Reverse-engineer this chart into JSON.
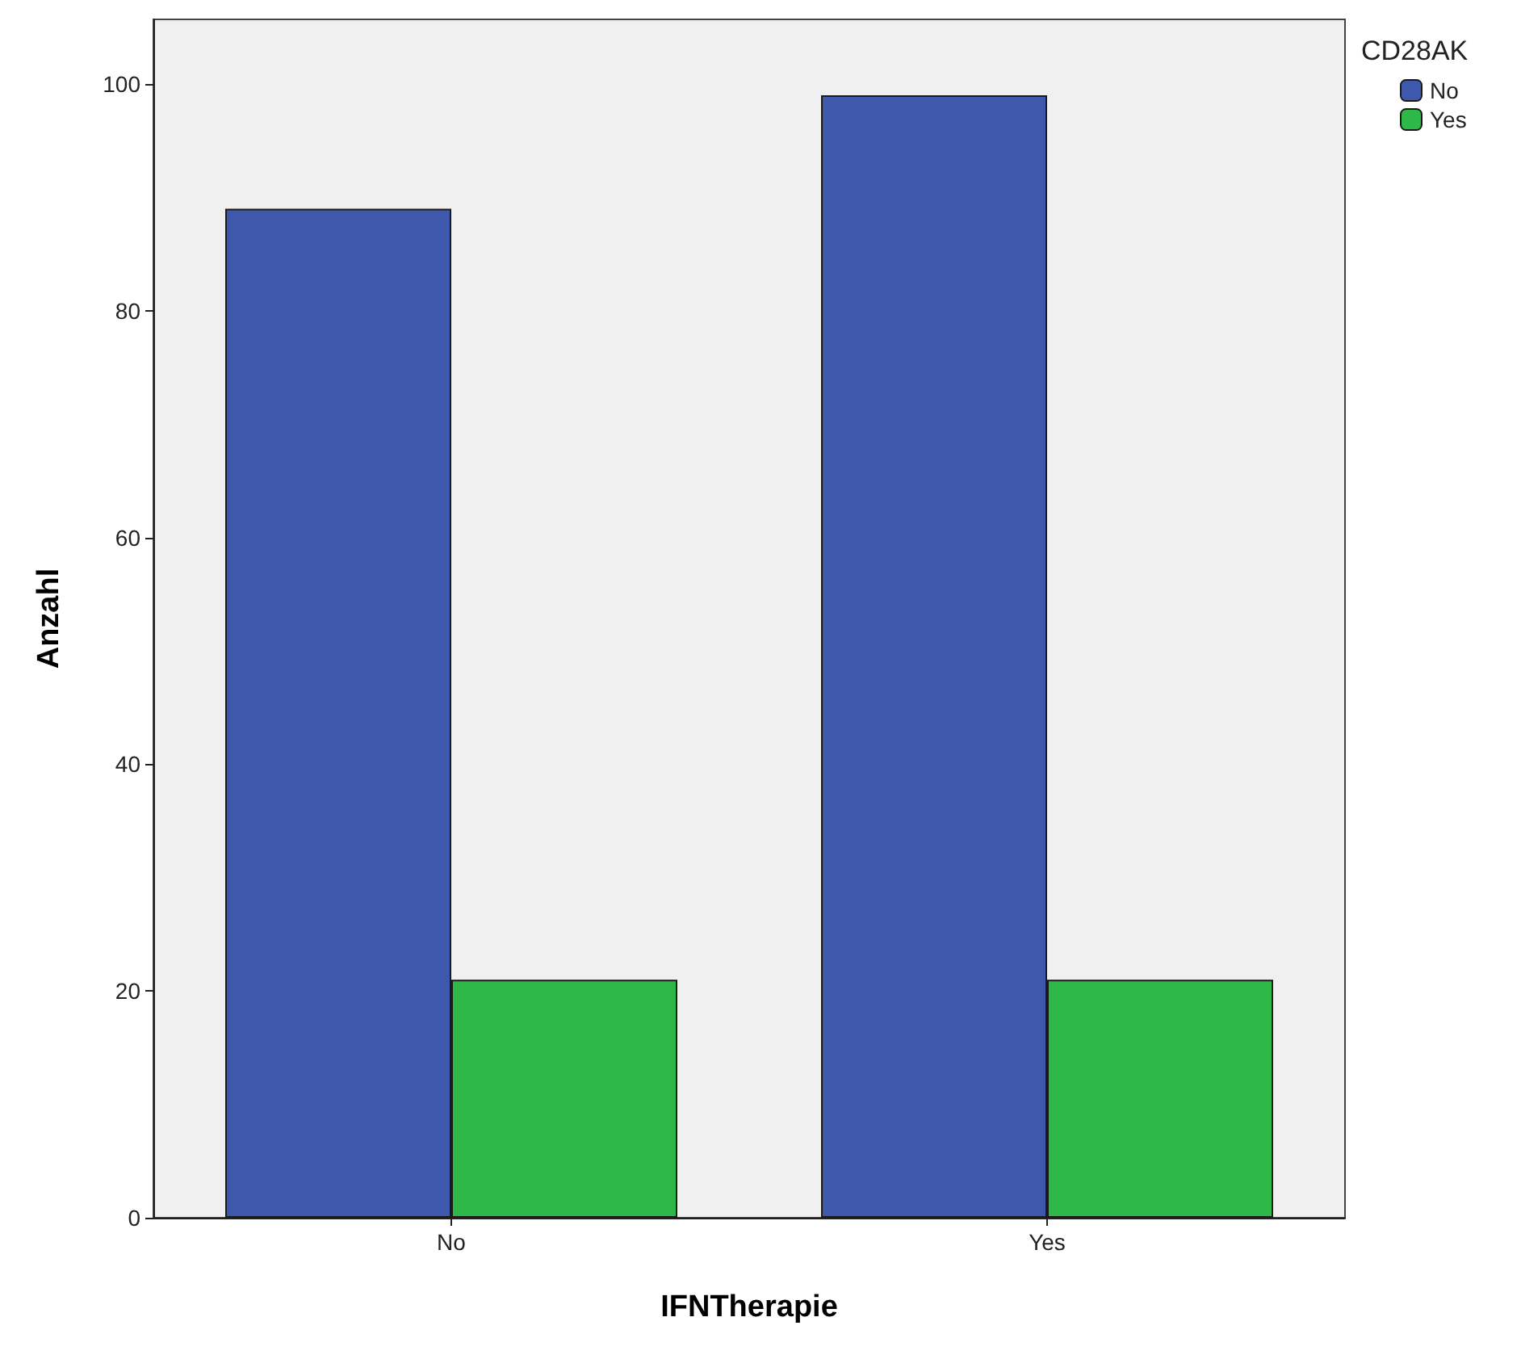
{
  "chart_data": {
    "type": "bar",
    "xlabel": "IFNTherapie",
    "ylabel": "Anzahl",
    "legend_title": "CD28AK",
    "categories": [
      "No",
      "Yes"
    ],
    "series": [
      {
        "name": "No",
        "color": "#3e58ac",
        "values": [
          89,
          99
        ]
      },
      {
        "name": "Yes",
        "color": "#2eb848",
        "values": [
          21,
          21
        ]
      }
    ],
    "ylim": [
      0,
      105.7
    ],
    "yticks": [
      0,
      20,
      40,
      60,
      80,
      100
    ],
    "grid": false,
    "legend": "top right"
  }
}
